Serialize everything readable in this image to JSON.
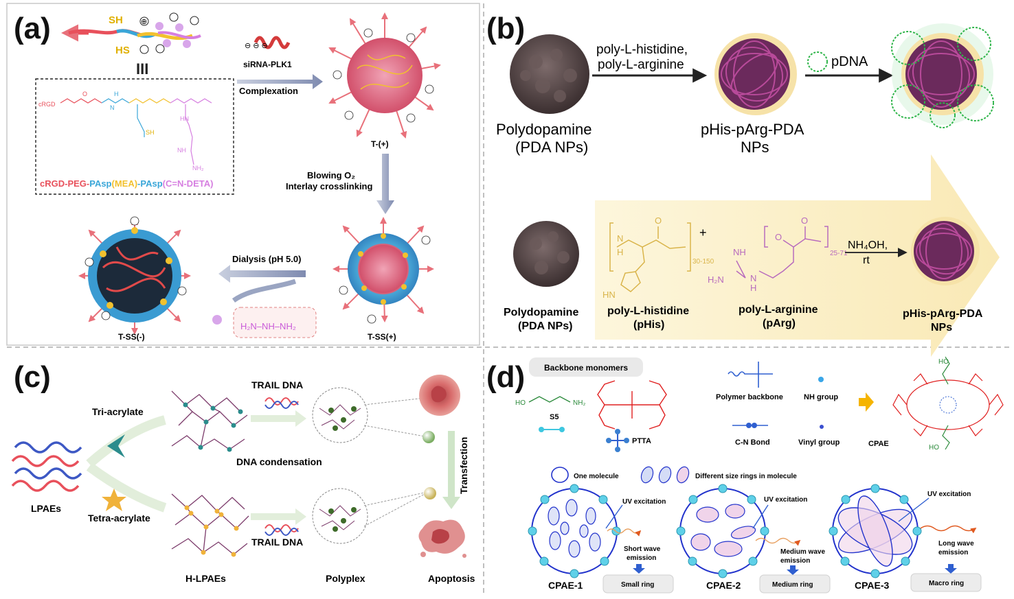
{
  "panels": {
    "a": {
      "letter": "(a)",
      "sh_top": "SH",
      "sh_bottom": "HS",
      "equiv": "III",
      "polymer_name": {
        "p1": "cRGD-PEG-",
        "p2": "PAsp",
        "p3": "(MEA)",
        "p4": "-PAsp",
        "p5": "(C=N-DETA)"
      },
      "sirna": "siRNA-PLK1",
      "complexation": "Complexation",
      "t_plus": "T-(+)",
      "blowing": "Blowing O₂",
      "interlay": "Interlay crosslinking",
      "dialysis": "Dialysis (pH 5.0)",
      "tss_plus": "T-SS(+)",
      "tss_minus": "T-SS(-)",
      "deta": "H₂N⁠–NH–⁠NH₂",
      "chem_labels": [
        "cRGD",
        "O",
        "N",
        "H",
        "SH",
        "NH₂",
        "HN",
        "NH"
      ]
    },
    "b": {
      "letter": "(b)",
      "arrow1_l1": "poly-L-histidine,",
      "arrow1_l2": "poly-L-arginine",
      "pdna": "pDNA",
      "pda_l1": "Polydopamine",
      "pda_l2": "(PDA NPs)",
      "phis_l1": "pHis-pArg-PDA",
      "phis_l2": "NPs",
      "pda2_l1": "Polydopamine",
      "pda2_l2": "(PDA NPs)",
      "his_l1": "poly-L-histidine",
      "his_l2": "(pHis)",
      "arg_l1": "poly-L-arginine",
      "arg_l2": "(pArg)",
      "phis2_l1": "pHis-pArg-PDA",
      "phis2_l2": "NPs",
      "plus": "+",
      "nh4oh": "NH₄OH,",
      "rt": "rt",
      "his_sub": "30-150",
      "arg_sub": "25-71",
      "chem": [
        "N",
        "H",
        "O",
        "HN",
        "NH",
        "H₂N",
        "N",
        "H",
        "O"
      ]
    },
    "c": {
      "letter": "(c)",
      "tri": "Tri-acrylate",
      "tetra": "Tetra-acrylate",
      "lpaes": "LPAEs",
      "trail1": "TRAIL DNA",
      "trail2": "TRAIL DNA",
      "condensation": "DNA condensation",
      "hlpaes": "H-LPAEs",
      "polyplex": "Polyplex",
      "apoptosis": "Apoptosis",
      "transfection": "Transfection"
    },
    "d": {
      "letter": "(d)",
      "backbone": "Backbone monomers",
      "s5": "S5",
      "ptta": "PTTA",
      "polymer_backbone": "Polymer backbone",
      "nh_group": "NH group",
      "cn_bond": "C-N Bond",
      "vinyl": "Vinyl group",
      "cpae": "CPAE",
      "one_molecule": "One molecule",
      "diff_rings": "Different size rings in molecule",
      "uv1": "UV excitation",
      "uv2": "UV excitation",
      "uv3": "UV excitation",
      "short_l1": "Short wave",
      "short_l2": "emission",
      "medium_l1": "Medium wave",
      "medium_l2": "emission",
      "long_l1": "Long wave",
      "long_l2": "emission",
      "cpae1": "CPAE-1",
      "cpae2": "CPAE-2",
      "cpae3": "CPAE-3",
      "small_ring": "Small ring",
      "medium_ring": "Medium ring",
      "macro_ring": "Macro ring",
      "s5_ho": "HO",
      "s5_nh2": "NH₂",
      "ho": "HO"
    }
  },
  "colors": {
    "peg": "#e8505b",
    "pasp": "#3aa6d8",
    "mea": "#f2c12e",
    "deta": "#d67ee0",
    "pda": "#5a4a4a",
    "shell": "#f6e2a8",
    "purple": "#6b2a5c",
    "teal": "#2b8c8c",
    "amber": "#f0b23a",
    "blue": "#2233cc",
    "cyan": "#3ec7e0"
  }
}
